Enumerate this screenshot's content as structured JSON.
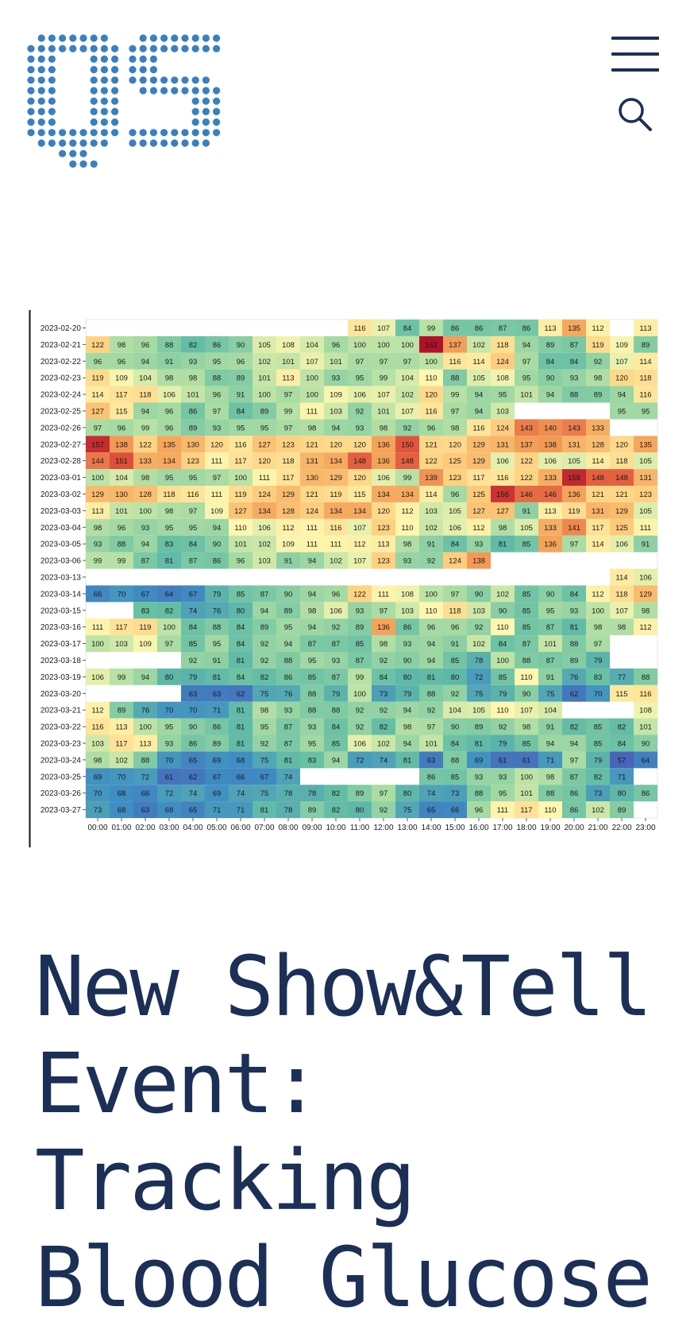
{
  "header": {
    "logo_alt": "QS",
    "logo_color": "#3a7fc1",
    "menu_icon": "hamburger-icon",
    "search_icon": "search-icon",
    "icon_color": "#1b2f57"
  },
  "article": {
    "title": "New Show&Tell Event: Tracking Blood Glucose"
  },
  "chart_data": {
    "type": "heatmap",
    "title": "",
    "xlabel": "",
    "ylabel": "",
    "x": [
      "00:00",
      "01:00",
      "02:00",
      "03:00",
      "04:00",
      "05:00",
      "06:00",
      "07:00",
      "08:00",
      "09:00",
      "10:00",
      "11:00",
      "12:00",
      "13:00",
      "14:00",
      "15:00",
      "16:00",
      "17:00",
      "18:00",
      "19:00",
      "20:00",
      "21:00",
      "22:00",
      "23:00"
    ],
    "y": [
      "2023-02-20",
      "2023-02-21",
      "2023-02-22",
      "2023-02-23",
      "2023-02-24",
      "2023-02-25",
      "2023-02-26",
      "2023-02-27",
      "2023-02-28",
      "2023-03-01",
      "2023-03-02",
      "2023-03-03",
      "2023-03-04",
      "2023-03-05",
      "2023-03-06",
      "2023-03-13",
      "2023-03-14",
      "2023-03-15",
      "2023-03-16",
      "2023-03-17",
      "2023-03-18",
      "2023-03-19",
      "2023-03-20",
      "2023-03-21",
      "2023-03-22",
      "2023-03-23",
      "2023-03-24",
      "2023-03-25",
      "2023-03-26",
      "2023-03-27"
    ],
    "values": [
      [
        null,
        null,
        null,
        null,
        null,
        null,
        null,
        null,
        null,
        null,
        null,
        116,
        107,
        84,
        99,
        86,
        86,
        87,
        86,
        113,
        135,
        112,
        null,
        113
      ],
      [
        122,
        98,
        96,
        88,
        82,
        86,
        90,
        105,
        108,
        104,
        96,
        100,
        100,
        100,
        162,
        137,
        102,
        118,
        94,
        89,
        87,
        119,
        109,
        89
      ],
      [
        96,
        96,
        94,
        91,
        93,
        95,
        96,
        102,
        101,
        107,
        101,
        97,
        97,
        97,
        100,
        116,
        114,
        124,
        97,
        84,
        84,
        92,
        107,
        114
      ],
      [
        119,
        109,
        104,
        98,
        98,
        88,
        89,
        101,
        113,
        100,
        93,
        95,
        99,
        104,
        110,
        88,
        105,
        108,
        95,
        90,
        93,
        98,
        120,
        118
      ],
      [
        114,
        117,
        118,
        106,
        101,
        96,
        91,
        100,
        97,
        100,
        109,
        106,
        107,
        102,
        120,
        99,
        94,
        95,
        101,
        94,
        88,
        89,
        94,
        116
      ],
      [
        127,
        115,
        94,
        96,
        86,
        97,
        84,
        89,
        99,
        111,
        103,
        92,
        101,
        107,
        116,
        97,
        94,
        103,
        null,
        null,
        null,
        null,
        95,
        95
      ],
      [
        97,
        96,
        99,
        96,
        89,
        93,
        95,
        95,
        97,
        98,
        94,
        93,
        98,
        92,
        96,
        98,
        116,
        124,
        143,
        140,
        143,
        133,
        null,
        null
      ],
      [
        157,
        138,
        122,
        135,
        130,
        120,
        116,
        127,
        123,
        121,
        120,
        120,
        136,
        150,
        121,
        120,
        129,
        131,
        137,
        138,
        131,
        128,
        120,
        135
      ],
      [
        144,
        151,
        133,
        134,
        123,
        111,
        117,
        120,
        118,
        131,
        134,
        148,
        136,
        148,
        122,
        125,
        129,
        106,
        122,
        106,
        105,
        114,
        118,
        105
      ],
      [
        100,
        104,
        98,
        95,
        95,
        97,
        100,
        111,
        117,
        130,
        129,
        120,
        106,
        99,
        139,
        123,
        117,
        116,
        122,
        133,
        158,
        148,
        148,
        131
      ],
      [
        129,
        130,
        128,
        118,
        116,
        111,
        119,
        124,
        129,
        121,
        119,
        115,
        134,
        134,
        114,
        96,
        125,
        156,
        146,
        146,
        136,
        121,
        121,
        123
      ],
      [
        113,
        101,
        100,
        98,
        97,
        109,
        127,
        134,
        128,
        124,
        134,
        134,
        120,
        112,
        103,
        105,
        127,
        127,
        91,
        113,
        119,
        131,
        129,
        105
      ],
      [
        98,
        96,
        93,
        95,
        95,
        94,
        110,
        106,
        112,
        111,
        116,
        107,
        123,
        110,
        102,
        106,
        112,
        98,
        105,
        133,
        141,
        117,
        125,
        111
      ],
      [
        93,
        88,
        94,
        83,
        84,
        90,
        101,
        102,
        109,
        111,
        111,
        112,
        113,
        98,
        91,
        84,
        93,
        81,
        85,
        136,
        97,
        114,
        106,
        91
      ],
      [
        99,
        99,
        87,
        81,
        87,
        86,
        96,
        103,
        91,
        94,
        102,
        107,
        123,
        93,
        92,
        124,
        138,
        null,
        null,
        null,
        null,
        null,
        null,
        null
      ],
      [
        null,
        null,
        null,
        null,
        null,
        null,
        null,
        null,
        null,
        null,
        null,
        null,
        null,
        null,
        null,
        null,
        null,
        null,
        null,
        null,
        null,
        null,
        114,
        106
      ],
      [
        66,
        70,
        67,
        64,
        67,
        79,
        85,
        87,
        90,
        94,
        96,
        122,
        111,
        108,
        100,
        97,
        90,
        102,
        85,
        90,
        84,
        112,
        118,
        129
      ],
      [
        null,
        null,
        83,
        82,
        74,
        76,
        80,
        94,
        89,
        98,
        106,
        93,
        97,
        103,
        110,
        118,
        103,
        90,
        85,
        95,
        93,
        100,
        107,
        98
      ],
      [
        111,
        117,
        119,
        100,
        84,
        88,
        84,
        89,
        95,
        94,
        92,
        89,
        136,
        86,
        96,
        96,
        92,
        110,
        85,
        87,
        81,
        98,
        98,
        112
      ],
      [
        100,
        103,
        109,
        97,
        85,
        95,
        84,
        92,
        94,
        87,
        87,
        85,
        98,
        93,
        94,
        91,
        102,
        84,
        87,
        101,
        88,
        97,
        null,
        null
      ],
      [
        null,
        null,
        null,
        null,
        92,
        91,
        81,
        92,
        88,
        95,
        93,
        87,
        92,
        90,
        94,
        85,
        78,
        100,
        88,
        87,
        89,
        79,
        null,
        null
      ],
      [
        106,
        99,
        94,
        80,
        79,
        81,
        84,
        82,
        86,
        85,
        87,
        99,
        84,
        80,
        81,
        80,
        72,
        85,
        110,
        91,
        76,
        83,
        77,
        88
      ],
      [
        null,
        null,
        null,
        null,
        63,
        63,
        62,
        75,
        76,
        88,
        79,
        100,
        73,
        79,
        88,
        92,
        75,
        79,
        90,
        75,
        62,
        70,
        115,
        116
      ],
      [
        112,
        89,
        76,
        70,
        70,
        71,
        81,
        98,
        93,
        88,
        88,
        92,
        92,
        94,
        92,
        104,
        105,
        110,
        107,
        104,
        null,
        null,
        null,
        108
      ],
      [
        116,
        113,
        100,
        95,
        90,
        86,
        81,
        95,
        87,
        93,
        84,
        92,
        82,
        98,
        97,
        90,
        89,
        92,
        98,
        91,
        82,
        85,
        82,
        101
      ],
      [
        103,
        117,
        113,
        93,
        86,
        89,
        81,
        92,
        87,
        95,
        85,
        106,
        102,
        94,
        101,
        84,
        81,
        79,
        85,
        94,
        94,
        85,
        84,
        90
      ],
      [
        98,
        102,
        88,
        70,
        65,
        69,
        68,
        75,
        81,
        83,
        94,
        72,
        74,
        81,
        63,
        88,
        69,
        61,
        61,
        71,
        97,
        79,
        57,
        64
      ],
      [
        69,
        70,
        72,
        61,
        62,
        67,
        66,
        67,
        74,
        null,
        null,
        null,
        null,
        null,
        86,
        85,
        93,
        93,
        100,
        98,
        87,
        82,
        71,
        null
      ],
      [
        70,
        68,
        66,
        72,
        74,
        69,
        74,
        75,
        78,
        78,
        82,
        89,
        97,
        80,
        74,
        73,
        88,
        95,
        101,
        88,
        86,
        73,
        80,
        86
      ],
      [
        73,
        68,
        63,
        68,
        65,
        71,
        71,
        81,
        78,
        89,
        82,
        80,
        92,
        75,
        65,
        66,
        96,
        111,
        117,
        110,
        86,
        102,
        89,
        null
      ]
    ],
    "vmin": 55,
    "vmax": 165,
    "colors": {
      "low": "#4a5db8",
      "mid_low": "#66bfa5",
      "mid": "#fdf7b0",
      "mid_high": "#f4a25a",
      "high": "#a50026",
      "empty": "#ffffff"
    },
    "grid": false,
    "legend": "none"
  }
}
